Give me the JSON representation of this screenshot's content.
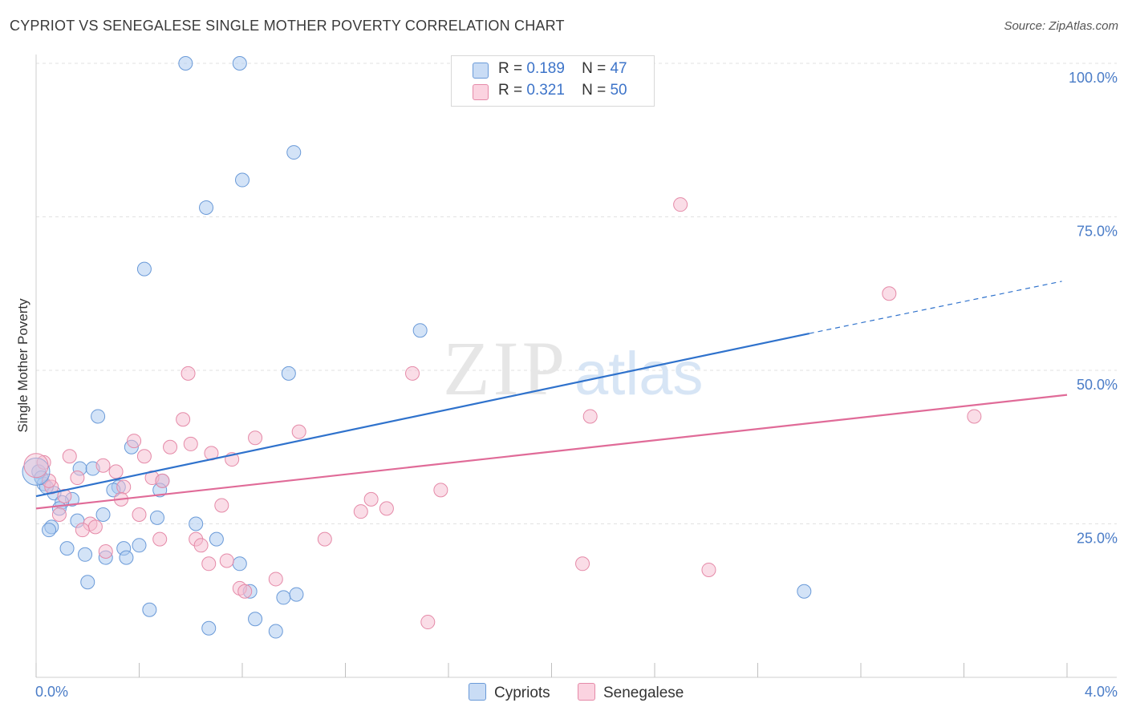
{
  "title": "CYPRIOT VS SENEGALESE SINGLE MOTHER POVERTY CORRELATION CHART",
  "source": "Source: ZipAtlas.com",
  "watermark": {
    "zip": "ZIP",
    "atlas": "atlas"
  },
  "legend": {
    "r_label": "R =",
    "n_label": "N =",
    "rows": [
      {
        "name": "Cypriots",
        "r": "0.189",
        "n": "47"
      },
      {
        "name": "Senegalese",
        "r": "0.321",
        "n": "50"
      }
    ]
  },
  "colors": {
    "cypriots_fill": "#a8c8f0",
    "cypriots_stroke": "#6a9ad8",
    "cypriots_line": "#2f72cc",
    "senegalese_fill": "#f5bcd0",
    "senegalese_stroke": "#e58aa8",
    "senegalese_line": "#e06b98",
    "tick_text": "#4a7cc7"
  },
  "chart_data": {
    "type": "scatter",
    "title": "CYPRIOT VS SENEGALESE SINGLE MOTHER POVERTY CORRELATION CHART",
    "xlabel": "",
    "ylabel": "Single Mother Poverty",
    "xlim": [
      0.0,
      4.0
    ],
    "ylim": [
      0.0,
      100.0
    ],
    "x_tick_labels": [
      "0.0%",
      "4.0%"
    ],
    "y_ticks": [
      25,
      50,
      75,
      100
    ],
    "y_tick_labels": [
      "25.0%",
      "50.0%",
      "75.0%",
      "100.0%"
    ],
    "grid": true,
    "series": [
      {
        "name": "Cypriots",
        "points": [
          [
            0.58,
            100.0
          ],
          [
            0.79,
            100.0
          ],
          [
            1.0,
            85.5
          ],
          [
            0.8,
            81.0
          ],
          [
            0.66,
            76.5
          ],
          [
            0.42,
            66.5
          ],
          [
            1.49,
            56.5
          ],
          [
            0.98,
            49.5
          ],
          [
            0.24,
            42.5
          ],
          [
            0.37,
            37.5
          ],
          [
            0.17,
            34.0
          ],
          [
            0.22,
            34.0
          ],
          [
            0.49,
            32.0
          ],
          [
            0.32,
            31.0
          ],
          [
            0.03,
            31.5
          ],
          [
            0.3,
            30.5
          ],
          [
            0.48,
            30.5
          ],
          [
            0.07,
            30.0
          ],
          [
            0.14,
            29.0
          ],
          [
            0.1,
            28.5
          ],
          [
            0.09,
            27.5
          ],
          [
            0.26,
            26.5
          ],
          [
            0.47,
            26.0
          ],
          [
            0.16,
            25.5
          ],
          [
            0.62,
            25.0
          ],
          [
            0.06,
            24.5
          ],
          [
            0.05,
            24.0
          ],
          [
            0.7,
            22.5
          ],
          [
            0.4,
            21.5
          ],
          [
            0.12,
            21.0
          ],
          [
            0.34,
            21.0
          ],
          [
            0.19,
            20.0
          ],
          [
            0.27,
            19.5
          ],
          [
            0.35,
            19.5
          ],
          [
            0.79,
            18.5
          ],
          [
            0.2,
            15.5
          ],
          [
            0.83,
            14.0
          ],
          [
            0.96,
            13.0
          ],
          [
            1.01,
            13.5
          ],
          [
            0.44,
            11.0
          ],
          [
            0.85,
            9.5
          ],
          [
            0.67,
            8.0
          ],
          [
            0.93,
            7.5
          ],
          [
            2.98,
            14.0
          ],
          [
            0.01,
            33.5
          ],
          [
            0.04,
            31.0
          ],
          [
            0.02,
            32.5
          ]
        ],
        "trend": {
          "x": [
            0.0,
            3.0
          ],
          "y": [
            29.5,
            56.0
          ],
          "dashed_x": [
            3.0,
            3.98
          ],
          "dashed_y": [
            56.0,
            64.5
          ]
        }
      },
      {
        "name": "Senegalese",
        "points": [
          [
            2.5,
            77.0
          ],
          [
            3.31,
            62.5
          ],
          [
            0.59,
            49.5
          ],
          [
            1.46,
            49.5
          ],
          [
            3.64,
            42.5
          ],
          [
            2.15,
            42.5
          ],
          [
            0.57,
            42.0
          ],
          [
            1.02,
            40.0
          ],
          [
            0.85,
            39.0
          ],
          [
            0.38,
            38.5
          ],
          [
            0.6,
            38.0
          ],
          [
            0.52,
            37.5
          ],
          [
            0.68,
            36.5
          ],
          [
            0.42,
            36.0
          ],
          [
            0.76,
            35.5
          ],
          [
            0.13,
            36.0
          ],
          [
            0.26,
            34.5
          ],
          [
            0.31,
            33.5
          ],
          [
            0.45,
            32.5
          ],
          [
            0.49,
            32.0
          ],
          [
            0.16,
            32.5
          ],
          [
            0.34,
            31.0
          ],
          [
            0.06,
            31.0
          ],
          [
            1.57,
            30.5
          ],
          [
            0.33,
            29.0
          ],
          [
            1.3,
            29.0
          ],
          [
            0.72,
            28.0
          ],
          [
            1.36,
            27.5
          ],
          [
            1.26,
            27.0
          ],
          [
            0.09,
            26.5
          ],
          [
            0.4,
            26.5
          ],
          [
            0.21,
            25.0
          ],
          [
            0.23,
            24.5
          ],
          [
            0.18,
            24.0
          ],
          [
            0.48,
            22.5
          ],
          [
            1.12,
            22.5
          ],
          [
            0.62,
            22.5
          ],
          [
            0.64,
            21.5
          ],
          [
            0.27,
            20.5
          ],
          [
            0.74,
            19.0
          ],
          [
            0.67,
            18.5
          ],
          [
            2.12,
            18.5
          ],
          [
            2.61,
            17.5
          ],
          [
            0.93,
            16.0
          ],
          [
            0.79,
            14.5
          ],
          [
            0.81,
            14.0
          ],
          [
            1.52,
            9.0
          ],
          [
            0.03,
            35.0
          ],
          [
            0.05,
            32.0
          ],
          [
            0.11,
            29.5
          ]
        ],
        "trend": {
          "x": [
            0.0,
            4.0
          ],
          "y": [
            27.5,
            46.0
          ]
        }
      }
    ]
  }
}
